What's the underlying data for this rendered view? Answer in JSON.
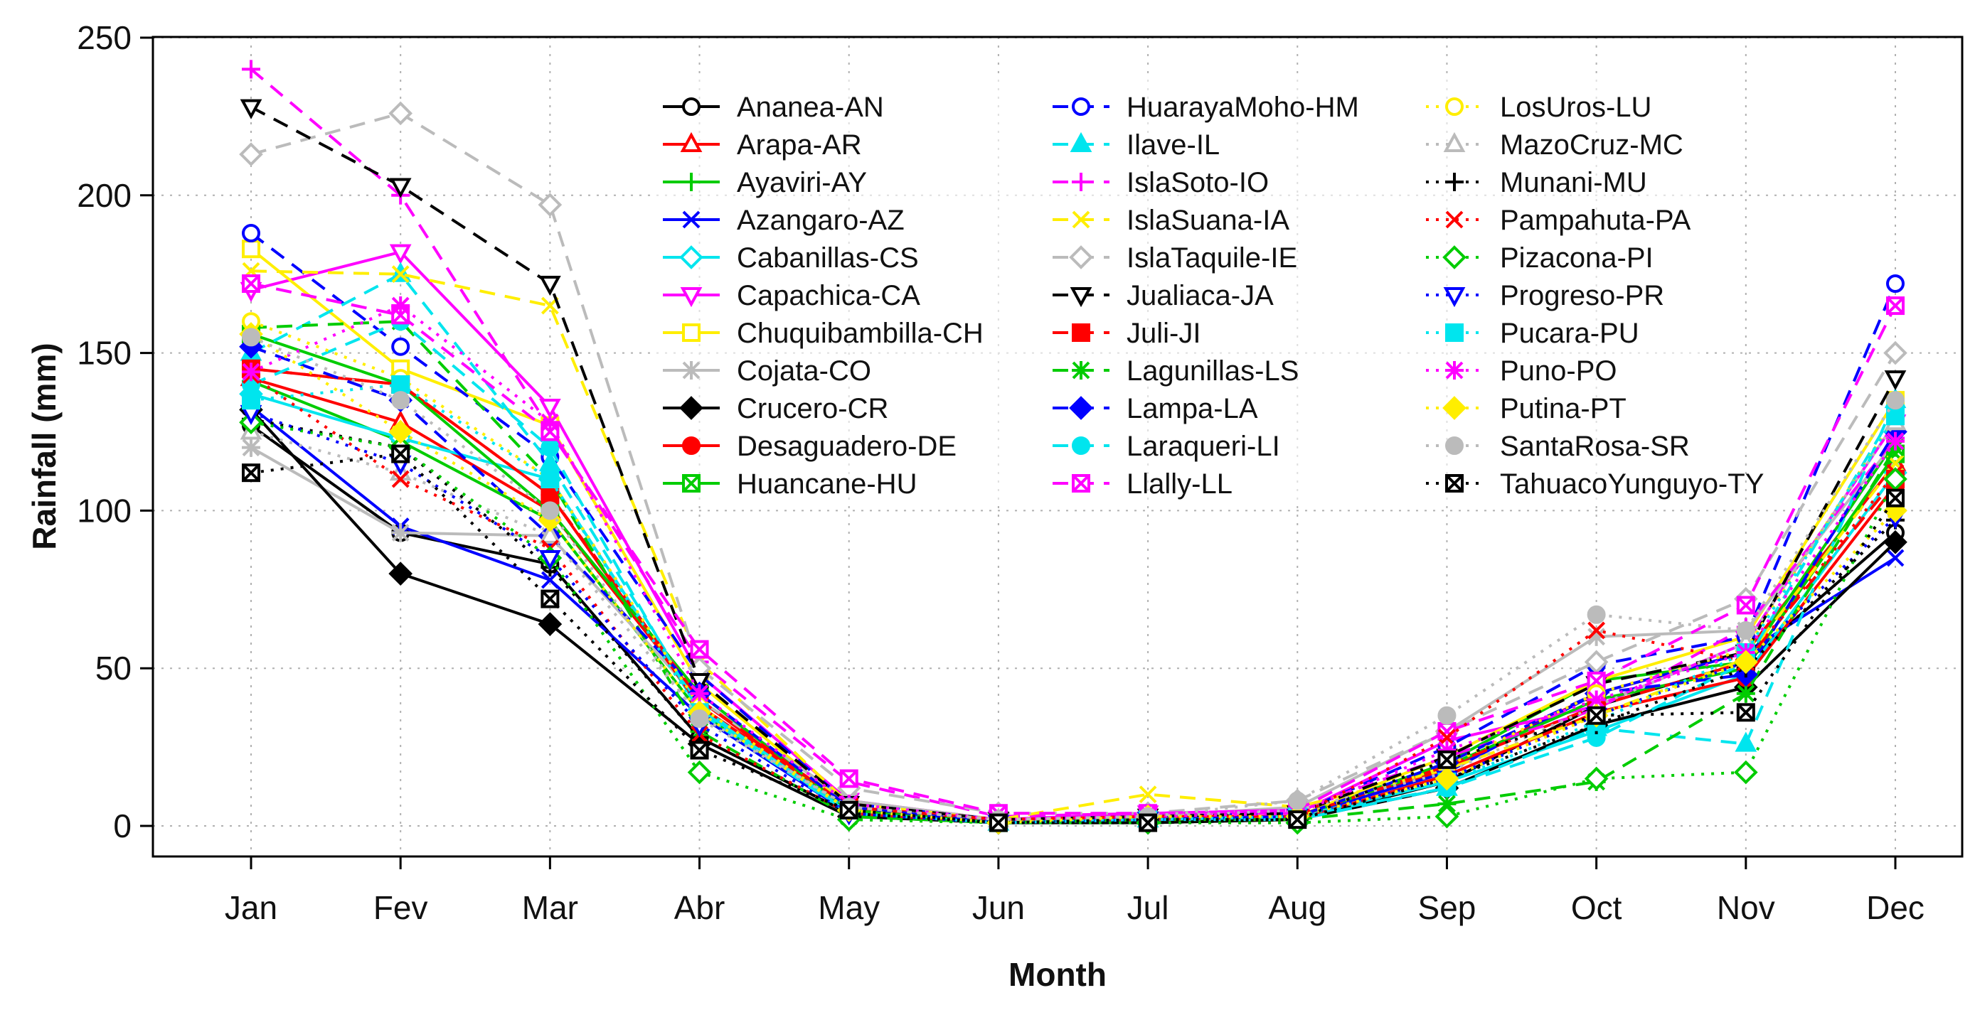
{
  "chart_data": {
    "type": "line",
    "title": "",
    "xlabel": "Month",
    "ylabel": "Rainfall (mm)",
    "ylim": [
      0,
      250
    ],
    "yticks": [
      0,
      50,
      100,
      150,
      200,
      250
    ],
    "grid": true,
    "legend_position": "top-right",
    "categories": [
      "Jan",
      "Fev",
      "Mar",
      "Abr",
      "May",
      "Jun",
      "Jul",
      "Aug",
      "Sep",
      "Oct",
      "Nov",
      "Dec"
    ],
    "series": [
      {
        "name": "Ananea-AN",
        "color": "#000000",
        "dash": "solid",
        "marker": "circle-open",
        "values": [
          127,
          93,
          83,
          28,
          4,
          1,
          2,
          2,
          14,
          38,
          52,
          93
        ]
      },
      {
        "name": "Arapa-AR",
        "color": "#ff0000",
        "dash": "solid",
        "marker": "triangle-open",
        "values": [
          142,
          128,
          100,
          40,
          5,
          1,
          2,
          3,
          18,
          42,
          55,
          115
        ]
      },
      {
        "name": "Ayaviri-AY",
        "color": "#00cc00",
        "dash": "solid",
        "marker": "plus",
        "values": [
          141,
          122,
          97,
          36,
          5,
          1,
          2,
          3,
          20,
          46,
          52,
          122
        ]
      },
      {
        "name": "Azangaro-AZ",
        "color": "#0000ff",
        "dash": "solid",
        "marker": "cross",
        "values": [
          133,
          95,
          78,
          35,
          4,
          1,
          2,
          3,
          17,
          42,
          55,
          85
        ]
      },
      {
        "name": "Cabanillas-CS",
        "color": "#00e5ee",
        "dash": "solid",
        "marker": "diamond-open",
        "values": [
          137,
          123,
          110,
          37,
          5,
          1,
          3,
          3,
          14,
          30,
          48,
          112
        ]
      },
      {
        "name": "Capachica-CA",
        "color": "#ff00ff",
        "dash": "solid",
        "marker": "triangle-down-open",
        "values": [
          170,
          182,
          133,
          48,
          8,
          2,
          4,
          4,
          27,
          38,
          58,
          128
        ]
      },
      {
        "name": "Chuquibambilla-CH",
        "color": "#ffee00",
        "dash": "solid",
        "marker": "square-open",
        "values": [
          183,
          145,
          127,
          45,
          6,
          1,
          3,
          3,
          22,
          46,
          60,
          135
        ]
      },
      {
        "name": "Cojata-CO",
        "color": "#bbbbbb",
        "dash": "solid",
        "marker": "asterisk",
        "values": [
          120,
          93,
          92,
          40,
          8,
          2,
          3,
          6,
          30,
          60,
          62,
          122
        ]
      },
      {
        "name": "Crucero-CR",
        "color": "#000000",
        "dash": "solid",
        "marker": "diamond",
        "values": [
          132,
          80,
          64,
          26,
          3,
          1,
          1,
          2,
          12,
          32,
          44,
          90
        ]
      },
      {
        "name": "Desaguadero-DE",
        "color": "#ff0000",
        "dash": "solid",
        "marker": "circle",
        "values": [
          145,
          140,
          105,
          38,
          6,
          1,
          2,
          2,
          16,
          36,
          47,
          108
        ]
      },
      {
        "name": "Huancane-HU",
        "color": "#00cc00",
        "dash": "solid",
        "marker": "square-cross",
        "values": [
          156,
          140,
          100,
          42,
          5,
          1,
          2,
          3,
          19,
          40,
          50,
          118
        ]
      },
      {
        "name": "HuarayaMoho-HM",
        "color": "#0000ff",
        "dash": "dashed",
        "marker": "circle-open",
        "values": [
          188,
          152,
          117,
          48,
          7,
          2,
          3,
          4,
          25,
          51,
          60,
          172
        ]
      },
      {
        "name": "Ilave-IL",
        "color": "#00e5ee",
        "dash": "dashed",
        "marker": "triangle",
        "values": [
          150,
          175,
          115,
          38,
          4,
          1,
          2,
          3,
          12,
          31,
          26,
          135
        ]
      },
      {
        "name": "IslaSoto-IO",
        "color": "#ff00ff",
        "dash": "dashed",
        "marker": "plus",
        "values": [
          240,
          200,
          126,
          52,
          14,
          3,
          4,
          5,
          22,
          37,
          63,
          123
        ]
      },
      {
        "name": "IslaSuana-IA",
        "color": "#ffee00",
        "dash": "dashed",
        "marker": "cross",
        "values": [
          176,
          175,
          165,
          52,
          7,
          2,
          10,
          6,
          18,
          35,
          53,
          115
        ]
      },
      {
        "name": "IslaTaquile-IE",
        "color": "#bbbbbb",
        "dash": "dashed",
        "marker": "diamond-open",
        "values": [
          213,
          226,
          197,
          50,
          12,
          4,
          4,
          8,
          30,
          52,
          72,
          150
        ]
      },
      {
        "name": "Jualiaca-JA",
        "color": "#000000",
        "dash": "dashed",
        "marker": "triangle-down-open",
        "values": [
          228,
          203,
          172,
          46,
          7,
          2,
          3,
          4,
          22,
          45,
          55,
          142
        ]
      },
      {
        "name": "Juli-JI",
        "color": "#ff0000",
        "dash": "dashed",
        "marker": "square",
        "values": [
          145,
          140,
          105,
          40,
          6,
          2,
          3,
          3,
          19,
          38,
          52,
          110
        ]
      },
      {
        "name": "Lagunillas-LS",
        "color": "#00cc00",
        "dash": "dashed",
        "marker": "asterisk",
        "values": [
          158,
          160,
          110,
          30,
          3,
          1,
          2,
          2,
          7,
          14,
          42,
          120
        ]
      },
      {
        "name": "Lampa-LA",
        "color": "#0000ff",
        "dash": "dashed",
        "marker": "diamond",
        "values": [
          152,
          135,
          92,
          42,
          6,
          1,
          2,
          3,
          20,
          42,
          48,
          125
        ]
      },
      {
        "name": "Laraqueri-LI",
        "color": "#00e5ee",
        "dash": "dashed",
        "marker": "circle",
        "values": [
          140,
          160,
          120,
          36,
          4,
          1,
          2,
          2,
          12,
          28,
          52,
          132
        ]
      },
      {
        "name": "Llally-LL",
        "color": "#ff00ff",
        "dash": "dashed",
        "marker": "square-cross",
        "values": [
          172,
          162,
          125,
          56,
          15,
          4,
          4,
          5,
          30,
          46,
          70,
          165
        ]
      },
      {
        "name": "LosUros-LU",
        "color": "#ffee00",
        "dash": "dotted",
        "marker": "circle-open",
        "values": [
          160,
          142,
          110,
          38,
          5,
          1,
          2,
          3,
          19,
          42,
          56,
          130
        ]
      },
      {
        "name": "MazoCruz-MC",
        "color": "#bbbbbb",
        "dash": "dotted",
        "marker": "triangle-open",
        "values": [
          125,
          112,
          92,
          35,
          6,
          2,
          3,
          5,
          17,
          38,
          58,
          128
        ]
      },
      {
        "name": "Munani-MU",
        "color": "#000000",
        "dash": "dotted",
        "marker": "plus",
        "values": [
          129,
          120,
          82,
          28,
          4,
          1,
          2,
          2,
          15,
          32,
          50,
          97
        ]
      },
      {
        "name": "Pampahuta-PA",
        "color": "#ff0000",
        "dash": "dotted",
        "marker": "cross",
        "values": [
          143,
          110,
          88,
          29,
          4,
          1,
          2,
          3,
          28,
          62,
          52,
          112
        ]
      },
      {
        "name": "Pizacona-PI",
        "color": "#00cc00",
        "dash": "dotted",
        "marker": "diamond-open",
        "values": [
          128,
          120,
          85,
          17,
          2,
          1,
          1,
          1,
          3,
          15,
          17,
          110
        ]
      },
      {
        "name": "Progreso-PR",
        "color": "#0000ff",
        "dash": "dotted",
        "marker": "triangle-down-open",
        "values": [
          131,
          115,
          85,
          32,
          4,
          1,
          2,
          3,
          15,
          35,
          52,
          98
        ]
      },
      {
        "name": "Pucara-PU",
        "color": "#00e5ee",
        "dash": "dotted",
        "marker": "square",
        "values": [
          135,
          140,
          110,
          36,
          5,
          1,
          2,
          3,
          14,
          33,
          55,
          130
        ]
      },
      {
        "name": "Puno-PO",
        "color": "#ff00ff",
        "dash": "dotted",
        "marker": "asterisk",
        "values": [
          144,
          165,
          128,
          42,
          7,
          2,
          3,
          4,
          24,
          40,
          55,
          122
        ]
      },
      {
        "name": "Putina-PT",
        "color": "#ffee00",
        "dash": "dotted",
        "marker": "diamond",
        "values": [
          156,
          125,
          97,
          36,
          5,
          1,
          3,
          3,
          15,
          35,
          52,
          100
        ]
      },
      {
        "name": "SantaRosa-SR",
        "color": "#bbbbbb",
        "dash": "dotted",
        "marker": "circle",
        "values": [
          155,
          135,
          100,
          34,
          6,
          2,
          3,
          8,
          35,
          67,
          62,
          135
        ]
      },
      {
        "name": "TahuacoYunguyo-TY",
        "color": "#000000",
        "dash": "dotted",
        "marker": "square-cross",
        "values": [
          112,
          118,
          72,
          24,
          5,
          1,
          1,
          2,
          21,
          35,
          36,
          104
        ]
      }
    ]
  }
}
